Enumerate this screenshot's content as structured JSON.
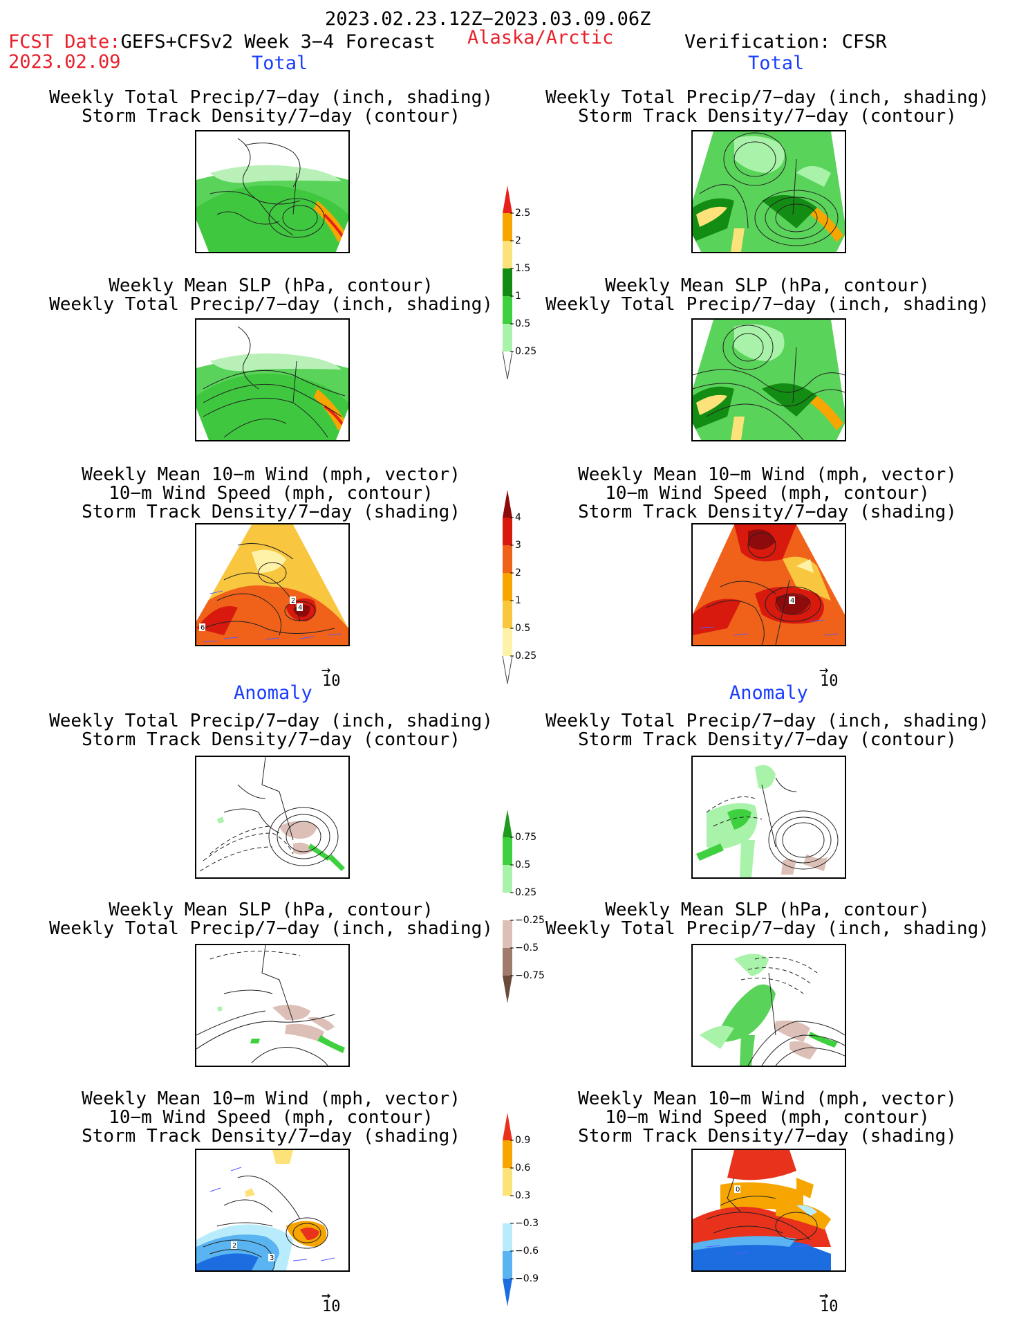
{
  "header": {
    "period": "2023.02.23.12Z−2023.03.09.06Z",
    "fcst_label": "FCST Date:",
    "model": "GEFS+CFSv2 Week 3−4 Forecast",
    "region": "Alaska/Arctic",
    "verification": "Verification: CFSR",
    "fcst_date": "2023.02.09"
  },
  "columns": {
    "left": {
      "total_label": "Total",
      "anomaly_label": "Anomaly"
    },
    "right": {
      "total_label": "Total",
      "anomaly_label": "Anomaly"
    }
  },
  "panel_titles": {
    "precip_storm": [
      "Weekly Total Precip/7−day (inch, shading)",
      "Storm Track Density/7−day (contour)"
    ],
    "slp_precip": [
      "Weekly Mean SLP (hPa, contour)",
      "Weekly Total Precip/7−day (inch, shading)"
    ],
    "wind_storm": [
      "Weekly Mean 10−m Wind (mph, vector)",
      "10−m Wind Speed (mph, contour)",
      "Storm Track Density/7−day (shading)"
    ]
  },
  "reference_vector": "10",
  "colorbars": {
    "precip_total": {
      "labels": [
        "2.5",
        "2",
        "1.5",
        "1",
        "0.5",
        "0.25"
      ],
      "colors": [
        "#e8201c",
        "#f7a500",
        "#fbe27a",
        "#138c13",
        "#3fd03f",
        "#a9f2a9"
      ]
    },
    "storm_total": {
      "labels": [
        "4",
        "3",
        "2",
        "1",
        "0.5",
        "0.25"
      ],
      "colors": [
        "#8e0b0b",
        "#d8190e",
        "#f0621a",
        "#f7a500",
        "#f9c63f",
        "#fdf2a8"
      ]
    },
    "precip_anom": {
      "labels": [
        "0.75",
        "0.5",
        "0.25",
        "−0.25",
        "−0.5",
        "−0.75"
      ],
      "colors": [
        "#1e9a1e",
        "#3fd03f",
        "#a9f2a9",
        "#ffffff",
        "#dcc0b7",
        "#a07a6c",
        "#6b4a3c"
      ]
    },
    "storm_anom": {
      "labels": [
        "0.9",
        "0.6",
        "0.3",
        "−0.3",
        "−0.6",
        "−0.9"
      ],
      "colors": [
        "#e8321c",
        "#f7a500",
        "#fde27a",
        "#ffffff",
        "#b8ecfc",
        "#5ab4f2",
        "#1c6ee0"
      ]
    }
  },
  "contour_labels": {
    "left_total_wind": [
      "2",
      "4",
      "6"
    ],
    "right_total_wind": [
      "4"
    ],
    "left_anom_wind": [
      "2",
      "3"
    ],
    "right_anom_wind": [
      "0"
    ]
  }
}
